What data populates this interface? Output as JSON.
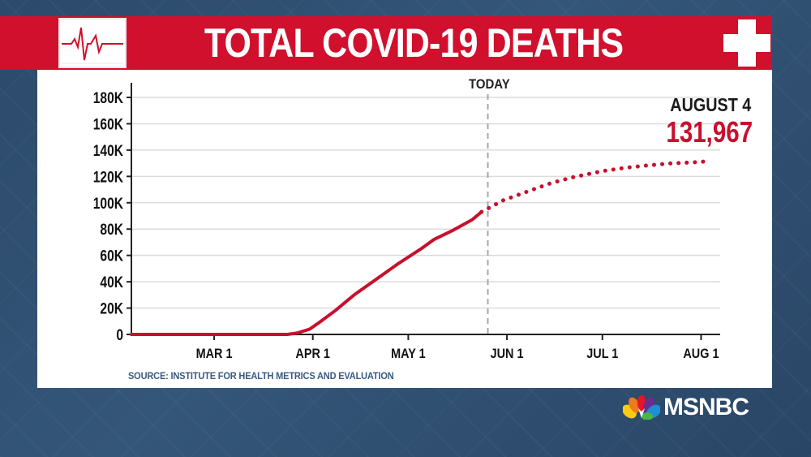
{
  "title": "TOTAL COVID-19 DEATHS",
  "source": "SOURCE: INSTITUTE FOR HEALTH METRICS AND EVALUATION",
  "today_label": "TODAY",
  "annotation": {
    "date": "AUGUST 4",
    "value": "131,967"
  },
  "logo_text": "MSNBC",
  "icons": {
    "header_left": "ecg-heartbeat-icon",
    "header_right": "medical-cross-icon",
    "logo": "nbc-peacock-icon"
  },
  "colors": {
    "brand_red": "#d0102c",
    "line": "#c8102e",
    "today": "#a8a8a8",
    "source_text": "#3a5a80"
  },
  "chart_data": {
    "type": "line",
    "title": "TOTAL COVID-19 DEATHS",
    "xlabel": "",
    "ylabel": "",
    "ylim": [
      0,
      180000
    ],
    "y_ticks": [
      0,
      20000,
      40000,
      60000,
      80000,
      100000,
      120000,
      140000,
      160000,
      180000
    ],
    "y_tick_labels": [
      "0",
      "20K",
      "40K",
      "60K",
      "80K",
      "100K",
      "120K",
      "140K",
      "160K",
      "180K"
    ],
    "x_ticks": [
      "2020-03-01",
      "2020-04-01",
      "2020-05-01",
      "2020-06-01",
      "2020-07-01",
      "2020-08-01"
    ],
    "x_tick_labels": [
      "MAR 1",
      "APR 1",
      "MAY 1",
      "JUN 1",
      "JUL 1",
      "AUG 1"
    ],
    "x_range": [
      "2020-02-04",
      "2020-08-07"
    ],
    "today": "2020-05-26",
    "series": [
      {
        "style": "solid",
        "points": [
          [
            "2020-02-04",
            0
          ],
          [
            "2020-02-20",
            0
          ],
          [
            "2020-03-10",
            0
          ],
          [
            "2020-03-24",
            0
          ],
          [
            "2020-03-27",
            1000
          ],
          [
            "2020-03-31",
            4000
          ],
          [
            "2020-04-03",
            9000
          ],
          [
            "2020-04-08",
            18000
          ],
          [
            "2020-04-14",
            30000
          ],
          [
            "2020-04-21",
            42000
          ],
          [
            "2020-04-28",
            54000
          ],
          [
            "2020-05-05",
            65000
          ],
          [
            "2020-05-09",
            72000
          ],
          [
            "2020-05-15",
            79000
          ],
          [
            "2020-05-21",
            87000
          ],
          [
            "2020-05-24",
            93000
          ]
        ]
      },
      {
        "style": "dotted",
        "points": [
          [
            "2020-05-24",
            93000
          ],
          [
            "2020-05-31",
            102000
          ],
          [
            "2020-06-08",
            109000
          ],
          [
            "2020-06-15",
            115000
          ],
          [
            "2020-06-22",
            119500
          ],
          [
            "2020-07-01",
            124000
          ],
          [
            "2020-07-08",
            126500
          ],
          [
            "2020-07-15",
            128300
          ],
          [
            "2020-07-22",
            129800
          ],
          [
            "2020-08-01",
            131000
          ],
          [
            "2020-08-04",
            131967
          ]
        ]
      }
    ]
  }
}
